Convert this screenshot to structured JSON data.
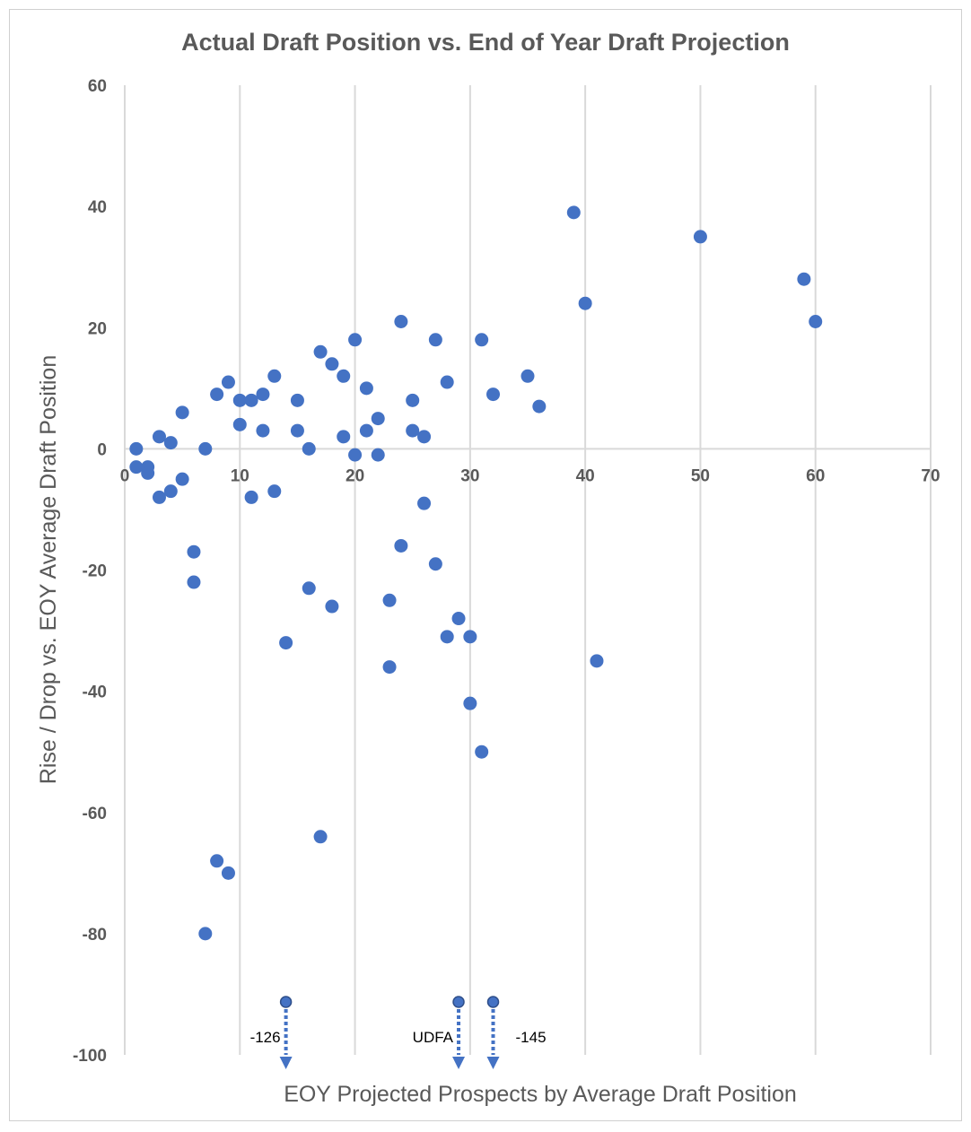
{
  "chart_data": {
    "type": "scatter",
    "title": "Actual Draft Position vs. End of Year Draft Projection",
    "xlabel": "EOY Projected Prospects by Average Draft Position",
    "ylabel": "Rise / Drop vs. EOY Average Draft Position",
    "xlim": [
      0,
      70
    ],
    "ylim": [
      -100,
      60
    ],
    "xticks": [
      "0",
      "10",
      "20",
      "30",
      "40",
      "50",
      "60",
      "70"
    ],
    "yticks": [
      "60",
      "40",
      "20",
      "0",
      "-20",
      "-40",
      "-60",
      "-80",
      "-100"
    ],
    "grid": "vertical",
    "marker_color": "#4472C4",
    "points": [
      [
        1,
        0
      ],
      [
        1,
        -3
      ],
      [
        2,
        -3
      ],
      [
        2,
        -4
      ],
      [
        3,
        2
      ],
      [
        3,
        -8
      ],
      [
        4,
        1
      ],
      [
        4,
        -7
      ],
      [
        5,
        6
      ],
      [
        5,
        -5
      ],
      [
        6,
        -17
      ],
      [
        6,
        -22
      ],
      [
        7,
        0
      ],
      [
        7,
        -80
      ],
      [
        8,
        9
      ],
      [
        8,
        -68
      ],
      [
        9,
        11
      ],
      [
        9,
        -70
      ],
      [
        10,
        8
      ],
      [
        10,
        4
      ],
      [
        11,
        8
      ],
      [
        11,
        -8
      ],
      [
        12,
        9
      ],
      [
        12,
        3
      ],
      [
        13,
        12
      ],
      [
        13,
        -7
      ],
      [
        14,
        -32
      ],
      [
        15,
        8
      ],
      [
        15,
        3
      ],
      [
        16,
        0
      ],
      [
        16,
        -23
      ],
      [
        17,
        16
      ],
      [
        17,
        -64
      ],
      [
        18,
        14
      ],
      [
        18,
        -26
      ],
      [
        19,
        12
      ],
      [
        19,
        2
      ],
      [
        20,
        18
      ],
      [
        20,
        -1
      ],
      [
        21,
        10
      ],
      [
        21,
        3
      ],
      [
        22,
        5
      ],
      [
        22,
        -1
      ],
      [
        23,
        -25
      ],
      [
        23,
        -36
      ],
      [
        24,
        21
      ],
      [
        24,
        -16
      ],
      [
        25,
        8
      ],
      [
        25,
        3
      ],
      [
        26,
        2
      ],
      [
        26,
        -9
      ],
      [
        27,
        18
      ],
      [
        27,
        -19
      ],
      [
        28,
        11
      ],
      [
        28,
        -31
      ],
      [
        29,
        -28
      ],
      [
        30,
        -31
      ],
      [
        30,
        -42
      ],
      [
        31,
        18
      ],
      [
        31,
        -50
      ],
      [
        32,
        9
      ],
      [
        35,
        12
      ],
      [
        36,
        7
      ],
      [
        39,
        39
      ],
      [
        40,
        24
      ],
      [
        41,
        -35
      ],
      [
        50,
        35
      ],
      [
        59,
        28
      ],
      [
        60,
        21
      ]
    ],
    "off_chart_annotations": [
      {
        "x": 14,
        "label": "-126"
      },
      {
        "x": 29,
        "label": "UDFA"
      },
      {
        "x": 32,
        "label": "-145"
      }
    ]
  }
}
